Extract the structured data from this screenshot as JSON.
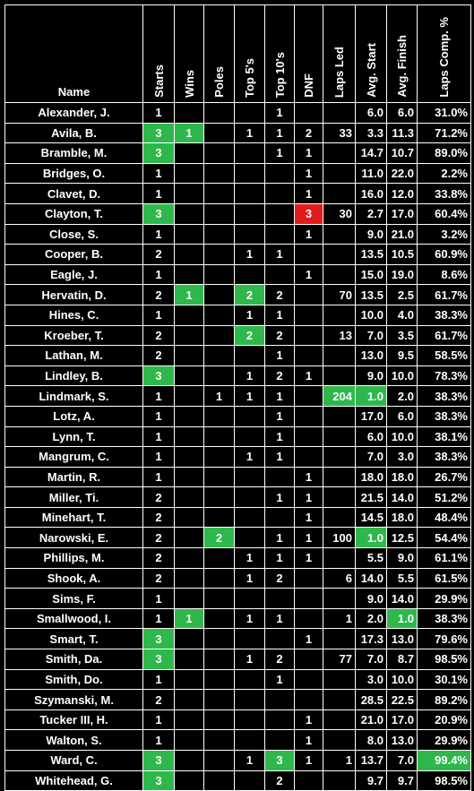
{
  "headers": {
    "name": "Name",
    "starts": "Starts",
    "wins": "Wins",
    "poles": "Poles",
    "top5": "Top 5's",
    "top10": "Top 10's",
    "dnf": "DNF",
    "laps_led": "Laps Led",
    "avg_start": "Avg. Start",
    "avg_finish": "Avg. Finish",
    "laps_comp": "Laps Comp. %"
  },
  "highlight_colors": {
    "best": "#2eb84b",
    "worst": "#e21b1b"
  },
  "rows": [
    {
      "name": "Alexander, J.",
      "starts": "1",
      "wins": "",
      "poles": "",
      "top5": "",
      "top10": "1",
      "dnf": "",
      "laps_led": "",
      "avg_start": "6.0",
      "avg_finish": "6.0",
      "laps_comp": "31.0%",
      "hl": []
    },
    {
      "name": "Avila, B.",
      "starts": "3",
      "wins": "1",
      "poles": "",
      "top5": "1",
      "top10": "1",
      "dnf": "2",
      "laps_led": "33",
      "avg_start": "3.3",
      "avg_finish": "11.3",
      "laps_comp": "71.2%",
      "hl": [
        "starts",
        "wins"
      ]
    },
    {
      "name": "Bramble, M.",
      "starts": "3",
      "wins": "",
      "poles": "",
      "top5": "",
      "top10": "1",
      "dnf": "1",
      "laps_led": "",
      "avg_start": "14.7",
      "avg_finish": "10.7",
      "laps_comp": "89.0%",
      "hl": [
        "starts"
      ]
    },
    {
      "name": "Bridges, O.",
      "starts": "1",
      "wins": "",
      "poles": "",
      "top5": "",
      "top10": "",
      "dnf": "1",
      "laps_led": "",
      "avg_start": "11.0",
      "avg_finish": "22.0",
      "laps_comp": "2.2%",
      "hl": []
    },
    {
      "name": "Clavet, D.",
      "starts": "1",
      "wins": "",
      "poles": "",
      "top5": "",
      "top10": "",
      "dnf": "1",
      "laps_led": "",
      "avg_start": "16.0",
      "avg_finish": "12.0",
      "laps_comp": "33.8%",
      "hl": []
    },
    {
      "name": "Clayton, T.",
      "starts": "3",
      "wins": "",
      "poles": "",
      "top5": "",
      "top10": "",
      "dnf": "3",
      "laps_led": "30",
      "avg_start": "2.7",
      "avg_finish": "17.0",
      "laps_comp": "60.4%",
      "hl": [
        "starts"
      ],
      "red": [
        "dnf"
      ]
    },
    {
      "name": "Close, S.",
      "starts": "1",
      "wins": "",
      "poles": "",
      "top5": "",
      "top10": "",
      "dnf": "1",
      "laps_led": "",
      "avg_start": "9.0",
      "avg_finish": "21.0",
      "laps_comp": "3.2%",
      "hl": []
    },
    {
      "name": "Cooper, B.",
      "starts": "2",
      "wins": "",
      "poles": "",
      "top5": "1",
      "top10": "1",
      "dnf": "",
      "laps_led": "",
      "avg_start": "13.5",
      "avg_finish": "10.5",
      "laps_comp": "60.9%",
      "hl": []
    },
    {
      "name": "Eagle, J.",
      "starts": "1",
      "wins": "",
      "poles": "",
      "top5": "",
      "top10": "",
      "dnf": "1",
      "laps_led": "",
      "avg_start": "15.0",
      "avg_finish": "19.0",
      "laps_comp": "8.6%",
      "hl": []
    },
    {
      "name": "Hervatin, D.",
      "starts": "2",
      "wins": "1",
      "poles": "",
      "top5": "2",
      "top10": "2",
      "dnf": "",
      "laps_led": "70",
      "avg_start": "13.5",
      "avg_finish": "2.5",
      "laps_comp": "61.7%",
      "hl": [
        "wins",
        "top5"
      ]
    },
    {
      "name": "Hines, C.",
      "starts": "1",
      "wins": "",
      "poles": "",
      "top5": "1",
      "top10": "1",
      "dnf": "",
      "laps_led": "",
      "avg_start": "10.0",
      "avg_finish": "4.0",
      "laps_comp": "38.3%",
      "hl": []
    },
    {
      "name": "Kroeber, T.",
      "starts": "2",
      "wins": "",
      "poles": "",
      "top5": "2",
      "top10": "2",
      "dnf": "",
      "laps_led": "13",
      "avg_start": "7.0",
      "avg_finish": "3.5",
      "laps_comp": "61.7%",
      "hl": [
        "top5"
      ]
    },
    {
      "name": "Lathan, M.",
      "starts": "2",
      "wins": "",
      "poles": "",
      "top5": "",
      "top10": "1",
      "dnf": "",
      "laps_led": "",
      "avg_start": "13.0",
      "avg_finish": "9.5",
      "laps_comp": "58.5%",
      "hl": []
    },
    {
      "name": "Lindley, B.",
      "starts": "3",
      "wins": "",
      "poles": "",
      "top5": "1",
      "top10": "2",
      "dnf": "1",
      "laps_led": "",
      "avg_start": "9.0",
      "avg_finish": "10.0",
      "laps_comp": "78.3%",
      "hl": [
        "starts"
      ]
    },
    {
      "name": "Lindmark, S.",
      "starts": "1",
      "wins": "",
      "poles": "1",
      "top5": "1",
      "top10": "1",
      "dnf": "",
      "laps_led": "204",
      "avg_start": "1.0",
      "avg_finish": "2.0",
      "laps_comp": "38.3%",
      "hl": [
        "laps_led",
        "avg_start"
      ]
    },
    {
      "name": "Lotz, A.",
      "starts": "1",
      "wins": "",
      "poles": "",
      "top5": "",
      "top10": "1",
      "dnf": "",
      "laps_led": "",
      "avg_start": "17.0",
      "avg_finish": "6.0",
      "laps_comp": "38.3%",
      "hl": []
    },
    {
      "name": "Lynn, T.",
      "starts": "1",
      "wins": "",
      "poles": "",
      "top5": "",
      "top10": "1",
      "dnf": "",
      "laps_led": "",
      "avg_start": "6.0",
      "avg_finish": "10.0",
      "laps_comp": "38.1%",
      "hl": []
    },
    {
      "name": "Mangrum, C.",
      "starts": "1",
      "wins": "",
      "poles": "",
      "top5": "1",
      "top10": "1",
      "dnf": "",
      "laps_led": "",
      "avg_start": "7.0",
      "avg_finish": "3.0",
      "laps_comp": "38.3%",
      "hl": []
    },
    {
      "name": "Martin, R.",
      "starts": "1",
      "wins": "",
      "poles": "",
      "top5": "",
      "top10": "",
      "dnf": "1",
      "laps_led": "",
      "avg_start": "18.0",
      "avg_finish": "18.0",
      "laps_comp": "26.7%",
      "hl": []
    },
    {
      "name": "Miller, Ti.",
      "starts": "2",
      "wins": "",
      "poles": "",
      "top5": "",
      "top10": "1",
      "dnf": "1",
      "laps_led": "",
      "avg_start": "21.5",
      "avg_finish": "14.0",
      "laps_comp": "51.2%",
      "hl": []
    },
    {
      "name": "Minehart, T.",
      "starts": "2",
      "wins": "",
      "poles": "",
      "top5": "",
      "top10": "",
      "dnf": "1",
      "laps_led": "",
      "avg_start": "14.5",
      "avg_finish": "18.0",
      "laps_comp": "48.4%",
      "hl": []
    },
    {
      "name": "Narowski, E.",
      "starts": "2",
      "wins": "",
      "poles": "2",
      "top5": "",
      "top10": "1",
      "dnf": "1",
      "laps_led": "100",
      "avg_start": "1.0",
      "avg_finish": "12.5",
      "laps_comp": "54.4%",
      "hl": [
        "poles",
        "avg_start"
      ]
    },
    {
      "name": "Phillips, M.",
      "starts": "2",
      "wins": "",
      "poles": "",
      "top5": "1",
      "top10": "1",
      "dnf": "1",
      "laps_led": "",
      "avg_start": "5.5",
      "avg_finish": "9.0",
      "laps_comp": "61.1%",
      "hl": []
    },
    {
      "name": "Shook, A.",
      "starts": "2",
      "wins": "",
      "poles": "",
      "top5": "1",
      "top10": "2",
      "dnf": "",
      "laps_led": "6",
      "avg_start": "14.0",
      "avg_finish": "5.5",
      "laps_comp": "61.5%",
      "hl": []
    },
    {
      "name": "Sims, F.",
      "starts": "1",
      "wins": "",
      "poles": "",
      "top5": "",
      "top10": "",
      "dnf": "",
      "laps_led": "",
      "avg_start": "9.0",
      "avg_finish": "14.0",
      "laps_comp": "29.9%",
      "hl": []
    },
    {
      "name": "Smallwood, I.",
      "starts": "1",
      "wins": "1",
      "poles": "",
      "top5": "1",
      "top10": "1",
      "dnf": "",
      "laps_led": "1",
      "avg_start": "2.0",
      "avg_finish": "1.0",
      "laps_comp": "38.3%",
      "hl": [
        "wins",
        "avg_finish"
      ]
    },
    {
      "name": "Smart, T.",
      "starts": "3",
      "wins": "",
      "poles": "",
      "top5": "",
      "top10": "",
      "dnf": "1",
      "laps_led": "",
      "avg_start": "17.3",
      "avg_finish": "13.0",
      "laps_comp": "79.6%",
      "hl": [
        "starts"
      ]
    },
    {
      "name": "Smith, Da.",
      "starts": "3",
      "wins": "",
      "poles": "",
      "top5": "1",
      "top10": "2",
      "dnf": "",
      "laps_led": "77",
      "avg_start": "7.0",
      "avg_finish": "8.7",
      "laps_comp": "98.5%",
      "hl": [
        "starts"
      ]
    },
    {
      "name": "Smith, Do.",
      "starts": "1",
      "wins": "",
      "poles": "",
      "top5": "",
      "top10": "1",
      "dnf": "",
      "laps_led": "",
      "avg_start": "3.0",
      "avg_finish": "10.0",
      "laps_comp": "30.1%",
      "hl": []
    },
    {
      "name": "Szymanski, M.",
      "starts": "2",
      "wins": "",
      "poles": "",
      "top5": "",
      "top10": "",
      "dnf": "",
      "laps_led": "",
      "avg_start": "28.5",
      "avg_finish": "22.5",
      "laps_comp": "89.2%",
      "hl": []
    },
    {
      "name": "Tucker III, H.",
      "starts": "1",
      "wins": "",
      "poles": "",
      "top5": "",
      "top10": "",
      "dnf": "1",
      "laps_led": "",
      "avg_start": "21.0",
      "avg_finish": "17.0",
      "laps_comp": "20.9%",
      "hl": []
    },
    {
      "name": "Walton, S.",
      "starts": "1",
      "wins": "",
      "poles": "",
      "top5": "",
      "top10": "",
      "dnf": "1",
      "laps_led": "",
      "avg_start": "8.0",
      "avg_finish": "13.0",
      "laps_comp": "29.9%",
      "hl": []
    },
    {
      "name": "Ward, C.",
      "starts": "3",
      "wins": "",
      "poles": "",
      "top5": "1",
      "top10": "3",
      "dnf": "1",
      "laps_led": "1",
      "avg_start": "13.7",
      "avg_finish": "7.0",
      "laps_comp": "99.4%",
      "hl": [
        "starts",
        "top10",
        "laps_comp"
      ]
    },
    {
      "name": "Whitehead, G.",
      "starts": "3",
      "wins": "",
      "poles": "",
      "top5": "",
      "top10": "2",
      "dnf": "",
      "laps_led": "",
      "avg_start": "9.7",
      "avg_finish": "9.7",
      "laps_comp": "98.5%",
      "hl": [
        "starts"
      ]
    }
  ]
}
